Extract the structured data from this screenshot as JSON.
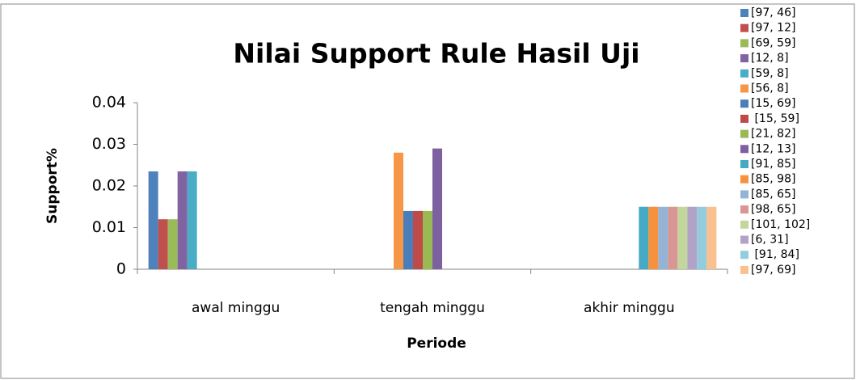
{
  "chart_data": {
    "type": "bar",
    "title": "Nilai Support Rule Hasil Uji",
    "x_label": "Periode",
    "y_label": "Support%",
    "categories": [
      "awal minggu",
      "tengah minggu",
      "akhir minggu"
    ],
    "ylim": [
      0,
      0.04
    ],
    "yticks": [
      0,
      0.01,
      0.02,
      0.03,
      0.04
    ],
    "grid": false,
    "legend": "right",
    "series": [
      {
        "name": "[97, 46]",
        "color": "#4f81bd",
        "values": [
          0.0235,
          null,
          null
        ]
      },
      {
        "name": "[97, 12]",
        "color": "#c0504d",
        "values": [
          0.012,
          null,
          null
        ]
      },
      {
        "name": "[69, 59]",
        "color": "#9bbb59",
        "values": [
          0.012,
          null,
          null
        ]
      },
      {
        "name": "[12, 8]",
        "color": "#8064a2",
        "values": [
          0.0235,
          null,
          null
        ]
      },
      {
        "name": "[59, 8]",
        "color": "#4bacc6",
        "values": [
          0.0235,
          null,
          null
        ]
      },
      {
        "name": "[56, 8]",
        "color": "#f79646",
        "values": [
          null,
          0.028,
          null
        ]
      },
      {
        "name": "[15, 69]",
        "color": "#4a7ebb",
        "values": [
          null,
          0.014,
          null
        ]
      },
      {
        "name": " [15, 59]",
        "color": "#be4b48",
        "values": [
          null,
          0.014,
          null
        ]
      },
      {
        "name": "[21, 82]",
        "color": "#98b954",
        "values": [
          null,
          0.014,
          null
        ]
      },
      {
        "name": "[12, 13]",
        "color": "#7d60a0",
        "values": [
          null,
          0.029,
          null
        ]
      },
      {
        "name": "[91, 85]",
        "color": "#46aac5",
        "values": [
          null,
          null,
          0.015
        ]
      },
      {
        "name": "[85, 98]",
        "color": "#f6923d",
        "values": [
          null,
          null,
          0.015
        ]
      },
      {
        "name": "[85, 65]",
        "color": "#95b3d7",
        "values": [
          null,
          null,
          0.015
        ]
      },
      {
        "name": "[98, 65]",
        "color": "#d99694",
        "values": [
          null,
          null,
          0.015
        ]
      },
      {
        "name": "[101, 102]",
        "color": "#c3d69b",
        "values": [
          null,
          null,
          0.015
        ]
      },
      {
        "name": "[6, 31]",
        "color": "#b3a2c7",
        "values": [
          null,
          null,
          0.015
        ]
      },
      {
        "name": " [91, 84]",
        "color": "#93cddd",
        "values": [
          null,
          null,
          0.015
        ]
      },
      {
        "name": "[97, 69]",
        "color": "#fac090",
        "values": [
          null,
          null,
          0.015
        ]
      }
    ]
  }
}
